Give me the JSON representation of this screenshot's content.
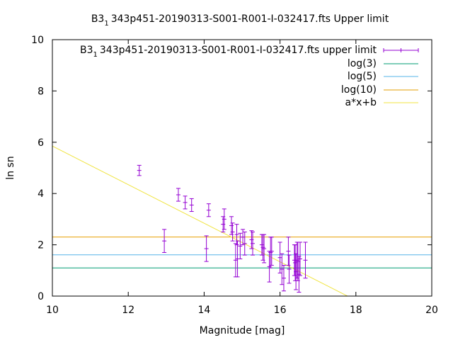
{
  "chart_data": {
    "type": "scatter",
    "title": {
      "prefix": "B3",
      "sub": "1",
      "suffix": "343p451-20190313-S001-R001-I-032417.fts Upper limit"
    },
    "xlabel": "Magnitude [mag]",
    "ylabel": "ln sn",
    "xlim": [
      10,
      20
    ],
    "ylim": [
      0,
      10
    ],
    "xticks": [
      10,
      12,
      14,
      16,
      18,
      20
    ],
    "yticks": [
      0,
      2,
      4,
      6,
      8,
      10
    ],
    "legend_position": "top-right",
    "grid": false,
    "series": [
      {
        "kind": "errorbars",
        "name": {
          "prefix": "B3",
          "sub": "1",
          "suffix": "343p451-20190313-S001-R001-I-032417.fts upper limit"
        },
        "color": "#9400d3",
        "points": [
          {
            "x": 12.29,
            "y": 4.9,
            "err": 0.2
          },
          {
            "x": 12.95,
            "y": 2.15,
            "err": 0.45
          },
          {
            "x": 13.32,
            "y": 3.95,
            "err": 0.25
          },
          {
            "x": 13.5,
            "y": 3.65,
            "err": 0.25
          },
          {
            "x": 13.67,
            "y": 3.55,
            "err": 0.25
          },
          {
            "x": 14.06,
            "y": 1.85,
            "err": 0.5
          },
          {
            "x": 14.12,
            "y": 3.35,
            "err": 0.25
          },
          {
            "x": 14.5,
            "y": 2.8,
            "err": 0.3
          },
          {
            "x": 14.53,
            "y": 3.0,
            "err": 0.4
          },
          {
            "x": 14.72,
            "y": 2.75,
            "err": 0.35
          },
          {
            "x": 14.75,
            "y": 2.5,
            "err": 0.35
          },
          {
            "x": 14.83,
            "y": 1.4,
            "err": 0.65
          },
          {
            "x": 14.86,
            "y": 2.4,
            "err": 0.4
          },
          {
            "x": 14.88,
            "y": 1.45,
            "err": 0.7
          },
          {
            "x": 14.95,
            "y": 1.95,
            "err": 0.5
          },
          {
            "x": 15.02,
            "y": 2.3,
            "err": 0.3
          },
          {
            "x": 15.07,
            "y": 2.05,
            "err": 0.45
          },
          {
            "x": 15.25,
            "y": 2.2,
            "err": 0.35
          },
          {
            "x": 15.28,
            "y": 2.05,
            "err": 0.45
          },
          {
            "x": 15.52,
            "y": 2.0,
            "err": 0.4
          },
          {
            "x": 15.55,
            "y": 1.9,
            "err": 0.5
          },
          {
            "x": 15.58,
            "y": 1.85,
            "err": 0.55
          },
          {
            "x": 15.72,
            "y": 1.15,
            "err": 0.6
          },
          {
            "x": 15.75,
            "y": 1.7,
            "err": 0.6
          },
          {
            "x": 15.78,
            "y": 1.75,
            "err": 0.55
          },
          {
            "x": 16.0,
            "y": 1.5,
            "err": 0.6
          },
          {
            "x": 16.05,
            "y": 1.05,
            "err": 0.6
          },
          {
            "x": 16.1,
            "y": 0.7,
            "err": 0.5
          },
          {
            "x": 16.22,
            "y": 1.75,
            "err": 0.55
          },
          {
            "x": 16.24,
            "y": 1.05,
            "err": 0.55
          },
          {
            "x": 16.38,
            "y": 1.4,
            "err": 0.6
          },
          {
            "x": 16.4,
            "y": 1.3,
            "err": 0.7
          },
          {
            "x": 16.42,
            "y": 0.95,
            "err": 0.7
          },
          {
            "x": 16.45,
            "y": 1.4,
            "err": 0.7
          },
          {
            "x": 16.47,
            "y": 1.35,
            "err": 0.75
          },
          {
            "x": 16.5,
            "y": 0.85,
            "err": 0.7
          },
          {
            "x": 16.53,
            "y": 1.45,
            "err": 0.65
          },
          {
            "x": 16.67,
            "y": 1.4,
            "err": 0.7
          }
        ]
      },
      {
        "kind": "hline",
        "name": "log(3)",
        "color": "#009e73",
        "y": 1.0986
      },
      {
        "kind": "hline",
        "name": "log(5)",
        "color": "#56b4e9",
        "y": 1.6094
      },
      {
        "kind": "hline",
        "name": "log(10)",
        "color": "#e69f00",
        "y": 2.3026
      },
      {
        "kind": "fitline",
        "name": "a*x+b",
        "color": "#f0e442",
        "slope": -0.752,
        "intercept": 13.37
      }
    ]
  }
}
